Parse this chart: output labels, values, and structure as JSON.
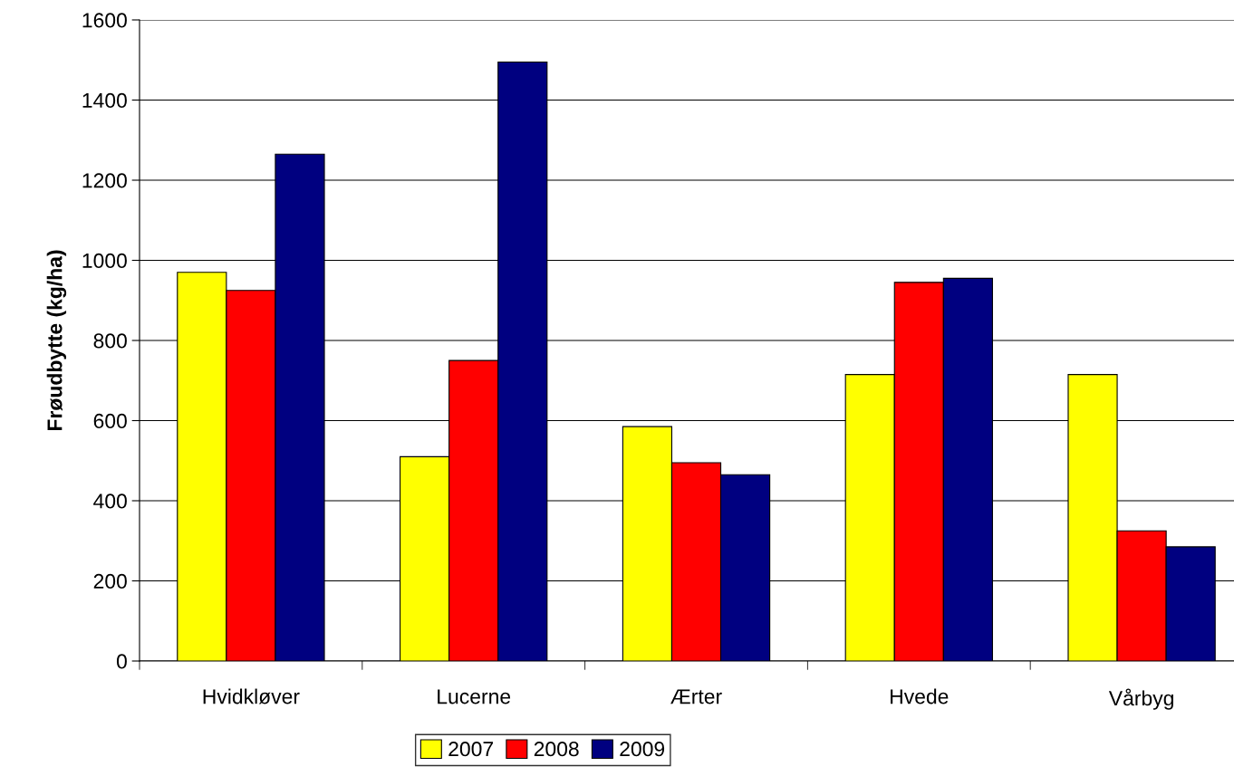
{
  "chart_data": {
    "type": "bar",
    "ylabel": "Frøudbytte (kg/ha)",
    "categories": [
      "Hvidkløver",
      "Lucerne",
      "Ærter",
      "Hvede",
      "Vårbyg"
    ],
    "series": [
      {
        "name": "2007",
        "color": "#ffff00",
        "values": [
          970,
          510,
          585,
          715,
          715
        ]
      },
      {
        "name": "2008",
        "color": "#ff0000",
        "values": [
          925,
          750,
          495,
          945,
          325
        ]
      },
      {
        "name": "2009",
        "color": "#000080",
        "values": [
          1265,
          1495,
          465,
          955,
          285
        ]
      }
    ],
    "ylim": [
      0,
      1600
    ],
    "yticks": [
      0,
      200,
      400,
      600,
      800,
      1000,
      1200,
      1400,
      1600
    ],
    "grid": "y",
    "legend": "bottom"
  }
}
